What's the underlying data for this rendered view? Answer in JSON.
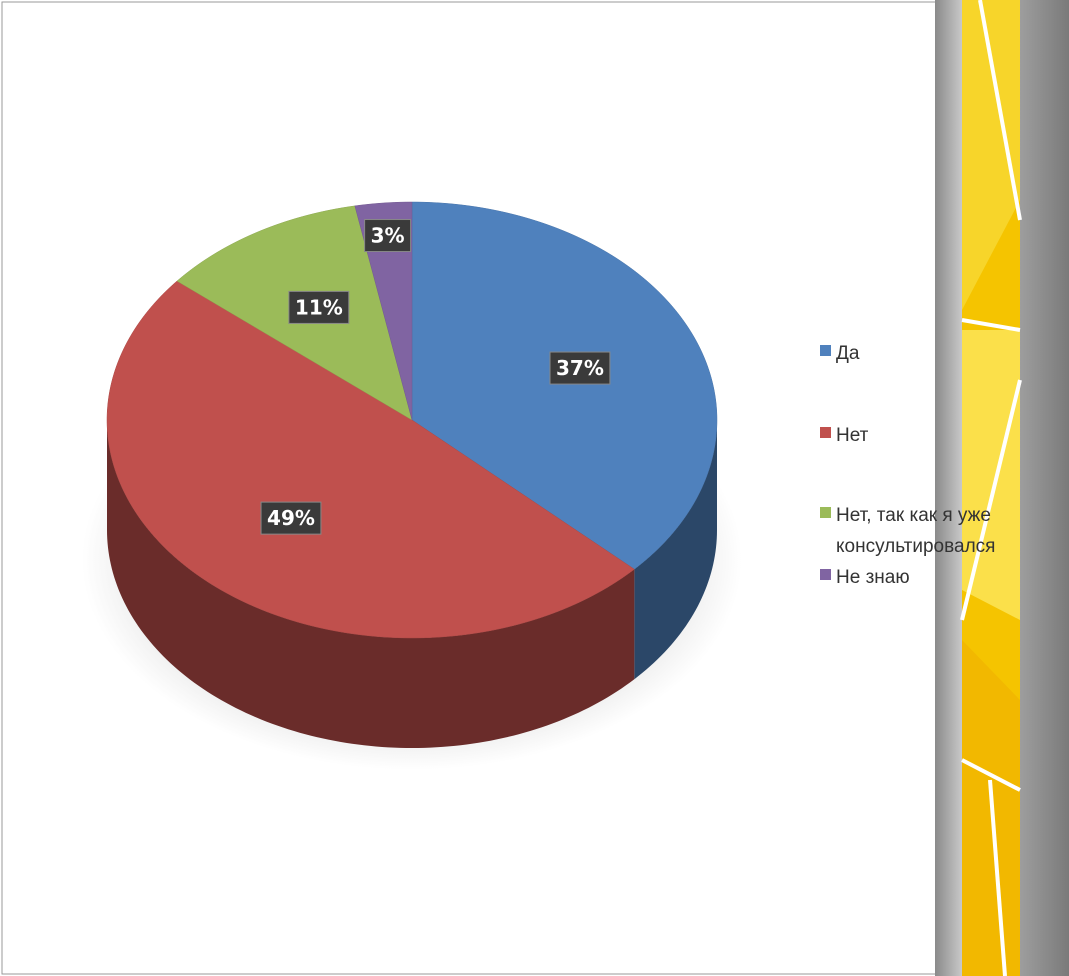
{
  "chart_data": {
    "type": "pie",
    "categories": [
      "Да",
      "Нет",
      "Нет, так как я уже консультировался",
      "Не знаю"
    ],
    "values": [
      37,
      49,
      11,
      3
    ],
    "value_labels": [
      "37%",
      "49%",
      "11%",
      "3%"
    ],
    "colors": [
      "#4f81bd",
      "#c0504d",
      "#9bbb59",
      "#8064a2"
    ],
    "legend": "right"
  }
}
